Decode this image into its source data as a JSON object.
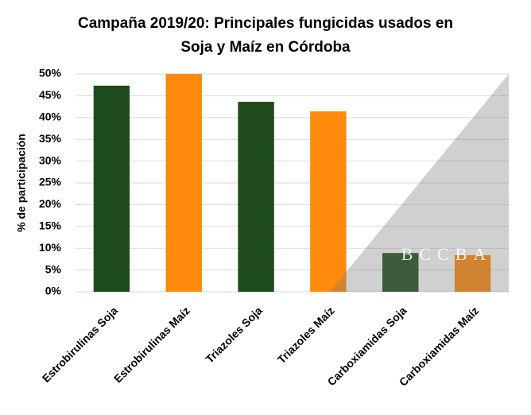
{
  "chart_data": {
    "type": "bar",
    "title": [
      "Campaña 2019/20: Principales fungicidas usados en",
      "Soja y Maíz en Córdoba"
    ],
    "y_label": "% de participación",
    "categories": [
      "Estrobirulinas Soja",
      "Estrobirulinas Maíz",
      "Triazoles Soja",
      "Triazoles Maíz",
      "Carboxiamidas Soja",
      "Carboxiamidas Maíz"
    ],
    "values": [
      47.3,
      50,
      43.6,
      41.4,
      8.9,
      8.4
    ],
    "colors": [
      "#1e4b1c",
      "#ff8a0c",
      "#1e4b1c",
      "#ff8a0c",
      "#1e4b1c",
      "#ff8a0c"
    ],
    "ylim": [
      0,
      50
    ],
    "yticks": [
      {
        "value": 0,
        "label": "0%"
      },
      {
        "value": 5,
        "label": "5%"
      },
      {
        "value": 10,
        "label": "10%"
      },
      {
        "value": 15,
        "label": "15%"
      },
      {
        "value": 20,
        "label": "20%"
      },
      {
        "value": 25,
        "label": "25%"
      },
      {
        "value": 30,
        "label": "30%"
      },
      {
        "value": 35,
        "label": "35%"
      },
      {
        "value": 40,
        "label": "40%"
      },
      {
        "value": 45,
        "label": "45%"
      },
      {
        "value": 50,
        "label": "50%"
      }
    ],
    "grid": true,
    "watermark": "BCCBA"
  }
}
